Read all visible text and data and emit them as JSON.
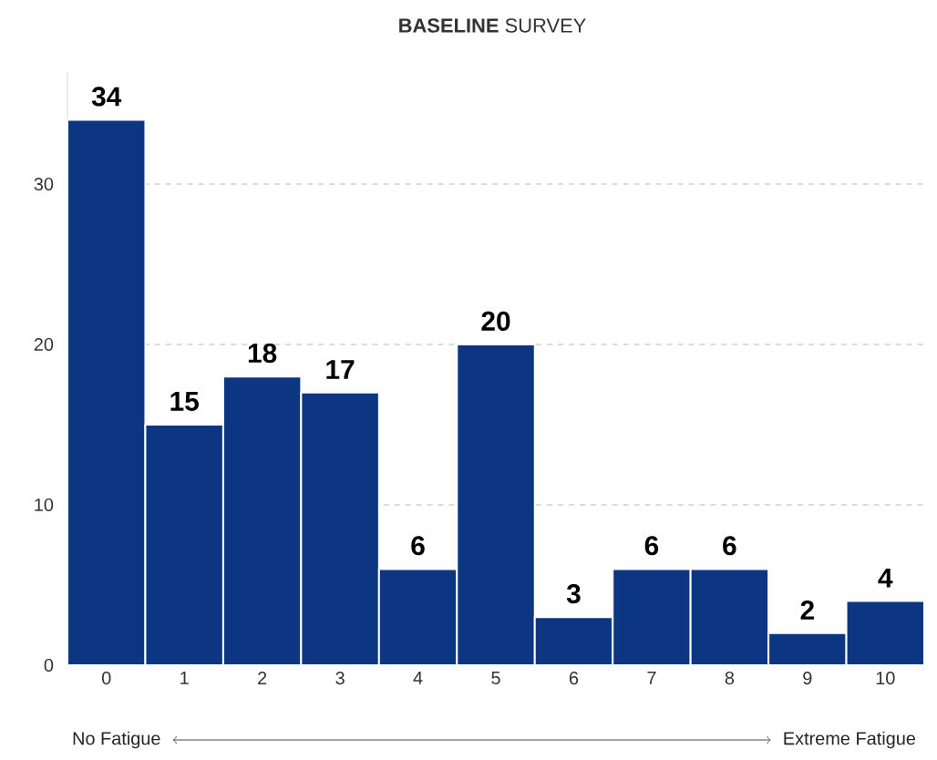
{
  "chart_data": {
    "type": "bar",
    "title": "**BASELINE** SURVEY",
    "categories": [
      "0",
      "1",
      "2",
      "3",
      "4",
      "5",
      "6",
      "7",
      "8",
      "9",
      "10"
    ],
    "values": [
      34,
      15,
      18,
      17,
      6,
      20,
      3,
      6,
      6,
      2,
      4
    ],
    "color": "#0c3582",
    "ylim": [
      0,
      37
    ],
    "yticks": [
      0,
      10,
      20,
      30
    ],
    "grid": "y",
    "data_labels": true,
    "annotations": [
      "No Fatigue",
      "Extreme Fatigue"
    ]
  }
}
